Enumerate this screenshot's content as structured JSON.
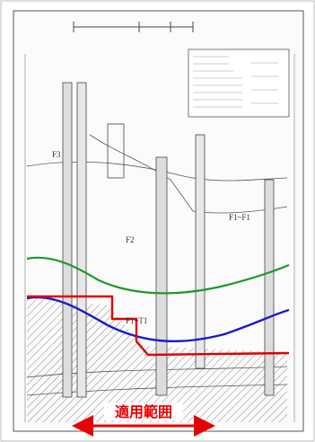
{
  "diagram": {
    "layer_labels": [
      "F3",
      "F2",
      "F1~T1",
      "F1~F1"
    ],
    "annotation": "適用範囲"
  }
}
